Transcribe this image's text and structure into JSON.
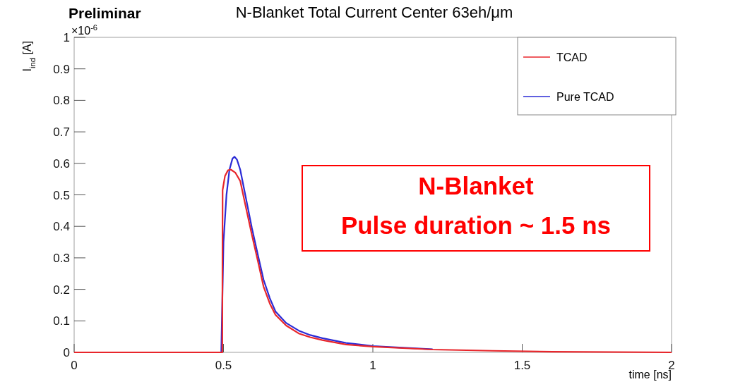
{
  "chart_data": {
    "type": "line",
    "title": "N-Blanket Total Current Center 63eh/μm",
    "xlabel": "time [ns]",
    "ylabel": "I$_{ind}$ [A]",
    "annotations": [
      "Preliminar",
      "×10$^{-6}$",
      "N-Blanket\nPulse duration ~ 1.5 ns"
    ],
    "xlim": [
      0,
      2
    ],
    "ylim": [
      0,
      1
    ],
    "xticks": [
      0,
      0.5,
      1,
      1.5,
      2
    ],
    "yticks": [
      0,
      0.1,
      0.2,
      0.3,
      0.4,
      0.5,
      0.6,
      0.7,
      0.8,
      0.9,
      1
    ],
    "legend": "top right",
    "grid": false,
    "series": [
      {
        "name": "TCAD",
        "color": "#e8262b",
        "x": [
          0,
          0.49,
          0.496,
          0.497,
          0.505,
          0.515,
          0.525,
          0.54,
          0.556,
          0.575,
          0.595,
          0.615,
          0.634,
          0.655,
          0.674,
          0.71,
          0.752,
          0.79,
          0.831,
          0.91,
          1.0,
          1.2,
          1.4,
          1.6,
          2
        ],
        "values": [
          0,
          0,
          0,
          0.515,
          0.56,
          0.578,
          0.58,
          0.57,
          0.544,
          0.46,
          0.373,
          0.29,
          0.209,
          0.155,
          0.119,
          0.085,
          0.06,
          0.048,
          0.039,
          0.025,
          0.018,
          0.009,
          0.005,
          0.002,
          0
        ]
      },
      {
        "name": "Pure TCAD",
        "color": "#2b2bd6",
        "x": [
          0,
          0.49,
          0.4925,
          0.5,
          0.51,
          0.52,
          0.53,
          0.537,
          0.545,
          0.556,
          0.575,
          0.595,
          0.615,
          0.634,
          0.655,
          0.674,
          0.71,
          0.752,
          0.79,
          0.831,
          0.91,
          1.0,
          1.2
        ],
        "values": [
          0,
          0,
          0,
          0.35,
          0.5,
          0.58,
          0.615,
          0.621,
          0.612,
          0.58,
          0.49,
          0.395,
          0.31,
          0.231,
          0.172,
          0.13,
          0.093,
          0.069,
          0.055,
          0.045,
          0.03,
          0.02,
          0.01
        ]
      }
    ]
  }
}
